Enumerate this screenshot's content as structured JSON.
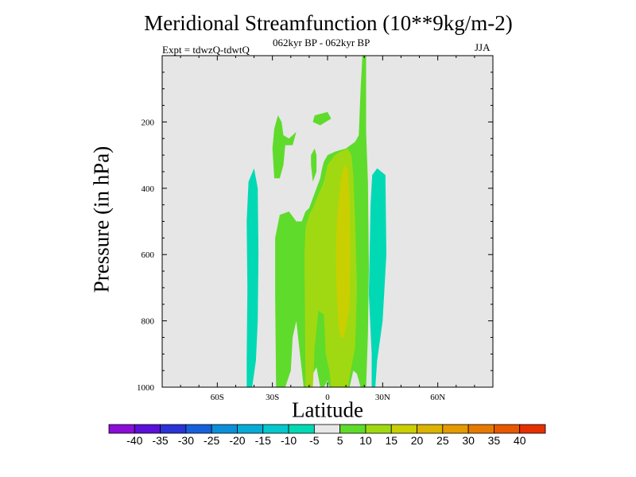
{
  "title": "Meridional Streamfunction (10**9kg/m-2)",
  "subtitle": "062kyr BP - 062kyr BP",
  "expt_label": "Expt = tdwzQ-tdwtQ",
  "season": "JJA",
  "colors": {
    "plot_bg": "#e6e6e6",
    "neg10": "#00d9b4",
    "pos5": "#5fdb2c",
    "pos10": "#a0d911",
    "pos15": "#c9cf00"
  },
  "chart_data": {
    "type": "contour-filled",
    "title": "Meridional Streamfunction (10**9kg/m-2)",
    "subtitle": "062kyr BP - 062kyr BP",
    "xlabel": "Latitude",
    "ylabel": "Pressure (in hPa)",
    "xlim": [
      -90,
      90
    ],
    "ylim": [
      1000,
      0
    ],
    "x_ticks": [
      {
        "value": -60,
        "label": "60S"
      },
      {
        "value": -30,
        "label": "30S"
      },
      {
        "value": 0,
        "label": "0"
      },
      {
        "value": 30,
        "label": "30N"
      },
      {
        "value": 60,
        "label": "60N"
      }
    ],
    "y_ticks": [
      {
        "value": 200,
        "label": "200"
      },
      {
        "value": 400,
        "label": "400"
      },
      {
        "value": 600,
        "label": "600"
      },
      {
        "value": 800,
        "label": "800"
      },
      {
        "value": 1000,
        "label": "1000"
      }
    ],
    "colorbar": {
      "labels": [
        "-40",
        "-35",
        "-30",
        "-25",
        "-20",
        "-15",
        "-10",
        "-5",
        "5",
        "10",
        "15",
        "20",
        "25",
        "30",
        "35",
        "40"
      ],
      "colors": [
        "#8a0ed6",
        "#5a10d9",
        "#2a33d6",
        "#1660db",
        "#0c8fd9",
        "#06acd6",
        "#04c8cc",
        "#00d9b4",
        "#e8e8e8",
        "#5fdb2c",
        "#a0d911",
        "#c9cf00",
        "#dcb400",
        "#e49a00",
        "#e67a00",
        "#e85800",
        "#e63000"
      ]
    },
    "regions": [
      {
        "name": "southern-negative-cell",
        "level": -10,
        "color": "neg10",
        "points": [
          [
            -44,
            1000
          ],
          [
            -44,
            920
          ],
          [
            -43.6,
            700
          ],
          [
            -44,
            500
          ],
          [
            -43,
            380
          ],
          [
            -40,
            340
          ],
          [
            -38,
            400
          ],
          [
            -37.6,
            600
          ],
          [
            -38,
            800
          ],
          [
            -39,
            920
          ],
          [
            -41,
            1000
          ]
        ]
      },
      {
        "name": "northern-negative-cell",
        "level": -10,
        "color": "neg10",
        "points": [
          [
            24,
            1000
          ],
          [
            24,
            900
          ],
          [
            22.5,
            720
          ],
          [
            23.4,
            450
          ],
          [
            24.3,
            360
          ],
          [
            27,
            340
          ],
          [
            31.5,
            360
          ],
          [
            32,
            600
          ],
          [
            30,
            800
          ],
          [
            27,
            920
          ],
          [
            26,
            1000
          ]
        ]
      },
      {
        "name": "main-positive-cell",
        "level": 5,
        "color": "pos5",
        "points": [
          [
            -28,
            1000
          ],
          [
            -28.5,
            720
          ],
          [
            -28.5,
            550
          ],
          [
            -26,
            480
          ],
          [
            -21,
            470
          ],
          [
            -17,
            500
          ],
          [
            -14,
            500
          ],
          [
            -12,
            470
          ],
          [
            -10,
            460
          ],
          [
            -8,
            430
          ],
          [
            -6,
            400
          ],
          [
            -4,
            370
          ],
          [
            -3,
            340
          ],
          [
            -2,
            320
          ],
          [
            0,
            300
          ],
          [
            4,
            290
          ],
          [
            10,
            280
          ],
          [
            15,
            260
          ],
          [
            17,
            240
          ],
          [
            18,
            100
          ],
          [
            19,
            0
          ],
          [
            21,
            0
          ],
          [
            21,
            230
          ],
          [
            22,
            380
          ],
          [
            22.5,
            640
          ],
          [
            22,
            840
          ],
          [
            21,
            1000
          ],
          [
            18,
            1000
          ],
          [
            16,
            960
          ],
          [
            14,
            950
          ],
          [
            12,
            1000
          ],
          [
            8,
            1000
          ],
          [
            6,
            970
          ],
          [
            4,
            1000
          ],
          [
            1,
            1000
          ],
          [
            0,
            980
          ],
          [
            -2,
            1000
          ],
          [
            -4,
            1000
          ],
          [
            -6,
            940
          ],
          [
            -8,
            960
          ],
          [
            -10,
            1000
          ],
          [
            -13,
            1000
          ],
          [
            -15,
            900
          ],
          [
            -17,
            800
          ],
          [
            -19,
            850
          ],
          [
            -20,
            950
          ],
          [
            -23,
            1000
          ]
        ]
      },
      {
        "name": "upper-positive-blob-west",
        "level": 5,
        "color": "pos5",
        "points": [
          [
            -29,
            370
          ],
          [
            -30,
            280
          ],
          [
            -29,
            220
          ],
          [
            -27,
            180
          ],
          [
            -25,
            200
          ],
          [
            -24,
            240
          ],
          [
            -21,
            250
          ],
          [
            -17,
            230
          ],
          [
            -19,
            270
          ],
          [
            -23,
            270
          ],
          [
            -24,
            330
          ],
          [
            -26,
            370
          ]
        ]
      },
      {
        "name": "upper-positive-blob-mid",
        "level": 5,
        "color": "pos5",
        "points": [
          [
            -8,
            380
          ],
          [
            -9,
            330
          ],
          [
            -9,
            300
          ],
          [
            -7,
            280
          ],
          [
            -6,
            300
          ],
          [
            -6,
            350
          ]
        ]
      },
      {
        "name": "upper-positive-blob-top",
        "level": 5,
        "color": "pos5",
        "points": [
          [
            -8,
            200
          ],
          [
            -7,
            180
          ],
          [
            0,
            170
          ],
          [
            2,
            190
          ],
          [
            -1,
            200
          ],
          [
            -4,
            210
          ]
        ]
      },
      {
        "name": "positive-cell-10",
        "level": 10,
        "color": "pos10",
        "points": [
          [
            -12,
            1000
          ],
          [
            -12.5,
            600
          ],
          [
            -12,
            520
          ],
          [
            -10,
            480
          ],
          [
            -8,
            460
          ],
          [
            -5,
            420
          ],
          [
            -2,
            380
          ],
          [
            0,
            330
          ],
          [
            4,
            300
          ],
          [
            7,
            290
          ],
          [
            11,
            280
          ],
          [
            13,
            300
          ],
          [
            14,
            360
          ],
          [
            15,
            500
          ],
          [
            16,
            700
          ],
          [
            15,
            880
          ],
          [
            13,
            940
          ],
          [
            11,
            1000
          ],
          [
            2,
            1000
          ],
          [
            1,
            950
          ],
          [
            -1,
            900
          ],
          [
            -2,
            780
          ],
          [
            -5,
            770
          ],
          [
            -7,
            880
          ],
          [
            -8,
            1000
          ]
        ]
      },
      {
        "name": "positive-cell-15",
        "level": 15,
        "color": "pos15",
        "points": [
          [
            6,
            820
          ],
          [
            5,
            730
          ],
          [
            4.5,
            600
          ],
          [
            5,
            500
          ],
          [
            7,
            380
          ],
          [
            9,
            330
          ],
          [
            11,
            340
          ],
          [
            12,
            420
          ],
          [
            12.5,
            600
          ],
          [
            12,
            760
          ],
          [
            9,
            850
          ],
          [
            7,
            850
          ]
        ]
      }
    ]
  }
}
